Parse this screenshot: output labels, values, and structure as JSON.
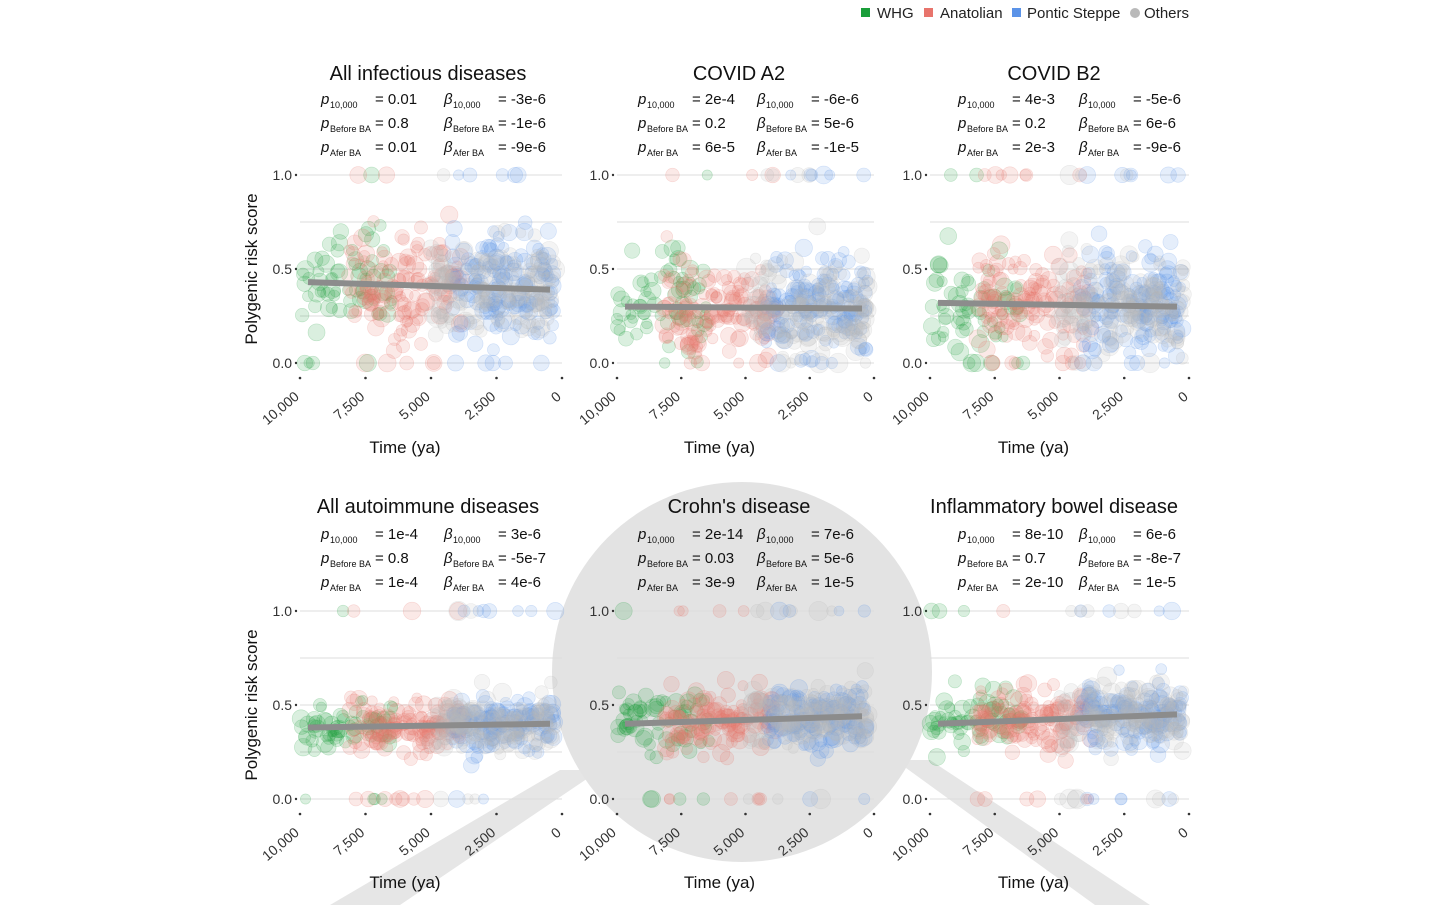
{
  "legend": [
    {
      "label": "WHG",
      "color": "#1a9e3a"
    },
    {
      "label": "Anatolian",
      "color": "#e8746c"
    },
    {
      "label": "Pontic Steppe",
      "color": "#5b93e8"
    },
    {
      "label": "Others",
      "color": "#b9b9b9"
    }
  ],
  "stat_labels": {
    "p": "p",
    "beta": "β",
    "sub_10000": "10,000",
    "sub_before": "Before BA",
    "sub_after": "Afer BA"
  },
  "chart_data": [
    {
      "type": "scatter",
      "title": "All infectious diseases",
      "xlabel": "Time (ya)",
      "ylabel": "Polygenic risk score",
      "xlim": [
        10000,
        0
      ],
      "ylim": [
        0,
        1
      ],
      "xticks": [
        "10,000",
        "7,500",
        "5,000",
        "2,500",
        "0"
      ],
      "yticks": [
        "0.0",
        "0.5",
        "1.0"
      ],
      "trend": {
        "x": [
          10000,
          0
        ],
        "y": [
          0.43,
          0.39
        ]
      },
      "stats": {
        "p_10000": "= 0.01",
        "p_before": "= 0.8",
        "p_after": "= 0.01",
        "b_10000": "= -3e-6",
        "b_before": "= -1e-6",
        "b_after": "= -9e-6"
      },
      "spread": 0.14
    },
    {
      "type": "scatter",
      "title": "COVID A2",
      "xlabel": "Time (ya)",
      "ylabel": "",
      "xlim": [
        10000,
        0
      ],
      "ylim": [
        0,
        1
      ],
      "xticks": [
        "10,000",
        "7,500",
        "5,000",
        "2,500",
        "0"
      ],
      "yticks": [
        "0.0",
        "0.5",
        "1.0"
      ],
      "trend": {
        "x": [
          10000,
          0
        ],
        "y": [
          0.3,
          0.29
        ]
      },
      "stats": {
        "p_10000": "= 2e-4",
        "p_before": "= 0.2",
        "p_after": "= 6e-5",
        "b_10000": "= -6e-6",
        "b_before": "= 5e-6",
        "b_after": "= -1e-5"
      },
      "spread": 0.13
    },
    {
      "type": "scatter",
      "title": "COVID B2",
      "xlabel": "Time (ya)",
      "ylabel": "",
      "xlim": [
        10000,
        0
      ],
      "ylim": [
        0,
        1
      ],
      "xticks": [
        "10,000",
        "7,500",
        "5,000",
        "2,500",
        "0"
      ],
      "yticks": [
        "0.0",
        "0.5",
        "1.0"
      ],
      "trend": {
        "x": [
          10000,
          0
        ],
        "y": [
          0.32,
          0.3
        ]
      },
      "stats": {
        "p_10000": "= 4e-3",
        "p_before": "= 0.2",
        "p_after": "= 2e-3",
        "b_10000": "= -5e-6",
        "b_before": "= 6e-6",
        "b_after": "= -9e-6"
      },
      "spread": 0.13
    },
    {
      "type": "scatter",
      "title": "All autoimmune diseases",
      "xlabel": "Time (ya)",
      "ylabel": "Polygenic risk score",
      "xlim": [
        10000,
        0
      ],
      "ylim": [
        0,
        1
      ],
      "xticks": [
        "10,000",
        "7,500",
        "5,000",
        "2,500",
        "0"
      ],
      "yticks": [
        "0.0",
        "0.5",
        "1.0"
      ],
      "trend": {
        "x": [
          10000,
          0
        ],
        "y": [
          0.38,
          0.4
        ]
      },
      "stats": {
        "p_10000": "= 1e-4",
        "p_before": "= 0.8",
        "p_after": "= 1e-4",
        "b_10000": "= 3e-6",
        "b_before": "= -5e-7",
        "b_after": "= 4e-6"
      },
      "spread": 0.07
    },
    {
      "type": "scatter",
      "title": "Crohn's disease",
      "xlabel": "Time (ya)",
      "ylabel": "",
      "xlim": [
        10000,
        0
      ],
      "ylim": [
        0,
        1
      ],
      "xticks": [
        "10,000",
        "7,500",
        "5,000",
        "2,500",
        "0"
      ],
      "yticks": [
        "0.0",
        "0.5",
        "1.0"
      ],
      "trend": {
        "x": [
          10000,
          0
        ],
        "y": [
          0.4,
          0.44
        ]
      },
      "stats": {
        "p_10000": "= 2e-14",
        "p_before": "= 0.03",
        "p_after": "= 3e-9",
        "b_10000": "= 7e-6",
        "b_before": "= 5e-6",
        "b_after": "= 1e-5"
      },
      "spread": 0.08
    },
    {
      "type": "scatter",
      "title": "Inflammatory bowel disease",
      "xlabel": "Time (ya)",
      "ylabel": "",
      "xlim": [
        10000,
        0
      ],
      "ylim": [
        0,
        1
      ],
      "xticks": [
        "10,000",
        "7,500",
        "5,000",
        "2,500",
        "0"
      ],
      "yticks": [
        "0.0",
        "0.5",
        "1.0"
      ],
      "trend": {
        "x": [
          10000,
          0
        ],
        "y": [
          0.4,
          0.45
        ]
      },
      "stats": {
        "p_10000": "= 8e-10",
        "p_before": "= 0.7",
        "p_after": "= 2e-10",
        "b_10000": "= 6e-6",
        "b_before": "= -8e-7",
        "b_after": "= 1e-5"
      },
      "spread": 0.08
    }
  ]
}
